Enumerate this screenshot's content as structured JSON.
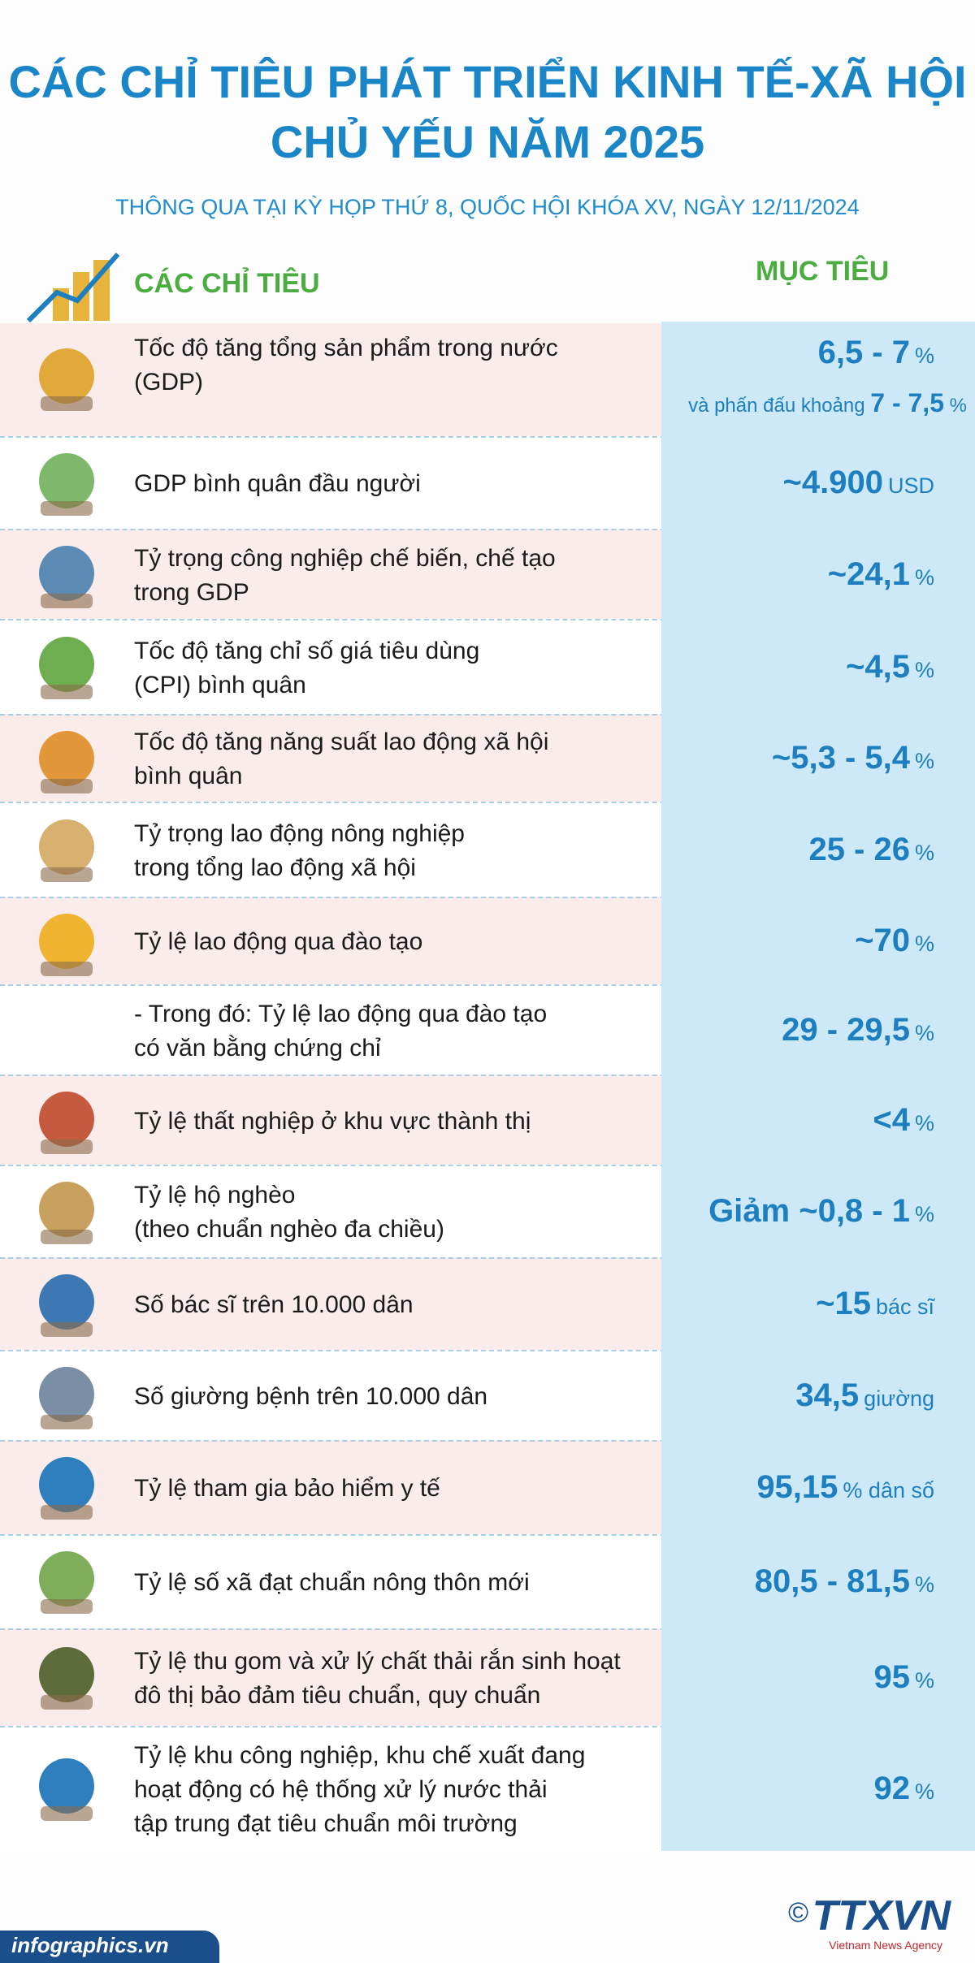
{
  "header": {
    "title_lines": [
      "CÁC CHỈ TIÊU PHÁT TRIỂN KINH TẾ-XÃ HỘI",
      "CHỦ YẾU NĂM 2025"
    ],
    "subtitle": "THÔNG QUA TẠI KỲ HỌP THỨ 8, QUỐC HỘI KHÓA XV, NGÀY 12/11/2024"
  },
  "table": {
    "columns": [
      "CÁC CHỈ TIÊU",
      "MỤC TIÊU"
    ],
    "rows": [
      {
        "label_lines": [
          "Tốc độ tăng tổng sản phẩm trong nước",
          "(GDP)"
        ],
        "value": "6,5 - 7",
        "unit": "%",
        "note": {
          "text": "và phấn đấu khoảng",
          "value": "7 - 7,5",
          "unit": "%"
        }
      },
      {
        "label_lines": [
          "GDP bình quân đầu người"
        ],
        "value": "~4.900",
        "unit": "USD"
      },
      {
        "label_lines": [
          "Tỷ trọng công nghiệp chế biến, chế tạo",
          "trong GDP"
        ],
        "value": "~24,1",
        "unit": "%"
      },
      {
        "label_lines": [
          "Tốc độ tăng chỉ số giá tiêu dùng",
          "(CPI) bình quân"
        ],
        "value": "~4,5",
        "unit": "%"
      },
      {
        "label_lines": [
          "Tốc độ tăng năng suất lao động xã hội",
          "bình quân"
        ],
        "value": "~5,3 - 5,4",
        "unit": "%"
      },
      {
        "label_lines": [
          "Tỷ trọng lao động nông nghiệp",
          "trong tổng lao động xã hội"
        ],
        "value": "25 - 26",
        "unit": "%"
      },
      {
        "label_lines": [
          "Tỷ lệ lao động qua đào tạo"
        ],
        "value": "~70",
        "unit": "%"
      },
      {
        "label_lines": [
          "- Trong đó: Tỷ lệ lao động qua đào tạo",
          "có văn bằng chứng chỉ"
        ],
        "value": "29 - 29,5",
        "unit": "%"
      },
      {
        "label_lines": [
          "Tỷ lệ thất nghiệp ở khu vực thành thị"
        ],
        "value": "<4",
        "unit": "%"
      },
      {
        "label_lines": [
          "Tỷ lệ hộ nghèo",
          "(theo chuẩn nghèo đa chiều)"
        ],
        "value": "Giảm ~0,8 - 1",
        "unit": "%"
      },
      {
        "label_lines": [
          "Số bác sĩ trên 10.000 dân"
        ],
        "value": "~15",
        "unit": "bác sĩ"
      },
      {
        "label_lines": [
          "Số giường bệnh trên 10.000 dân"
        ],
        "value": "34,5",
        "unit": "giường"
      },
      {
        "label_lines": [
          "Tỷ lệ tham gia bảo hiểm y tế"
        ],
        "value": "95,15",
        "unit": "% dân số"
      },
      {
        "label_lines": [
          "Tỷ lệ số xã đạt chuẩn nông thôn mới"
        ],
        "value": "80,5 - 81,5",
        "unit": "%"
      },
      {
        "label_lines": [
          "Tỷ lệ thu gom và xử lý chất thải rắn sinh hoạt",
          "đô thị bảo đảm tiêu chuẩn, quy chuẩn"
        ],
        "value": "95",
        "unit": "%"
      },
      {
        "label_lines": [
          "Tỷ lệ khu công nghiệp, khu chế xuất đang",
          "hoạt động có hệ thống xử lý nước thải",
          "tập trung đạt tiêu chuẩn môi trường"
        ],
        "value": "92",
        "unit": "%"
      }
    ]
  },
  "footer": {
    "source": "infographics.vn",
    "copyright": "©",
    "logo": "TTXVN",
    "agency": "Vietnam News Agency"
  }
}
